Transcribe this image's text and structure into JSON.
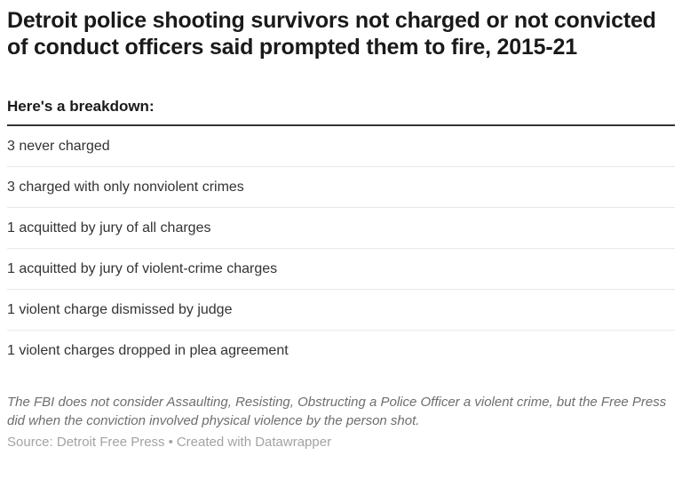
{
  "header": {
    "title": "Detroit police shooting survivors not charged or not convicted of conduct officers said prompted them to fire, 2015-21",
    "subtitle": "Here's a breakdown:"
  },
  "chart_data": {
    "type": "table",
    "title": "Detroit police shooting survivors not charged or not convicted of conduct officers said prompted them to fire, 2015-21",
    "subtitle": "Here's a breakdown:",
    "categories": [
      "never charged",
      "charged with only nonviolent crimes",
      "acquitted by jury of all charges",
      "acquitted by jury of violent-crime charges",
      "violent charge dismissed by judge",
      "violent charges dropped in plea agreement"
    ],
    "values": [
      3,
      3,
      1,
      1,
      1,
      1
    ],
    "rows": [
      "3 never charged",
      "3 charged with only nonviolent crimes",
      "1 acquitted by jury of all charges",
      "1 acquitted by jury of violent-crime charges",
      "1 violent charge dismissed by judge",
      "1 violent charges dropped in plea agreement"
    ],
    "footnote": "The FBI does not consider Assaulting, Resisting, Obstructing a Police Officer a violent crime, but the Free Press did when the conviction involved physical violence by the person shot.",
    "source": "Detroit Free Press",
    "attribution": "Created with Datawrapper",
    "legend_position": "none",
    "grid": "row-separators-only"
  },
  "footer": {
    "source_label": "Source: Detroit Free Press",
    "separator": "•",
    "attribution": "Created with Datawrapper"
  },
  "colors": {
    "background": "#ffffff",
    "title_text": "#1a1a1a",
    "row_text": "#333333",
    "header_rule": "#333333",
    "row_separator": "#e8e8e8",
    "footnote_text": "#6e6e6e",
    "source_text": "#a3a3a3"
  }
}
